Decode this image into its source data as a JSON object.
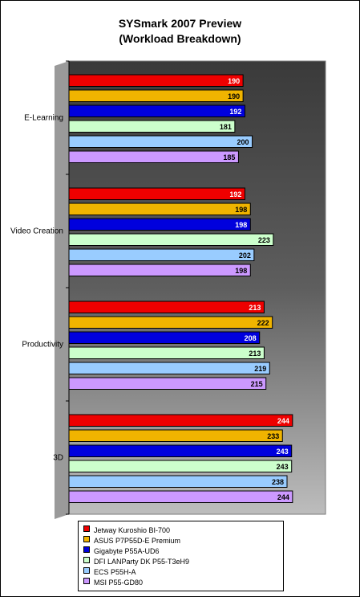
{
  "chart_data": {
    "type": "bar",
    "orientation": "horizontal",
    "title": [
      "SYSmark 2007 Preview",
      "(Workload Breakdown)"
    ],
    "categories": [
      "E-Learning",
      "Video Creation",
      "Productivity",
      "3D"
    ],
    "series": [
      {
        "name": "Jetway Kuroshio BI-700",
        "color": "#ee0000",
        "label_color": "#ffffff",
        "values": [
          190,
          192,
          213,
          244
        ]
      },
      {
        "name": "ASUS P7P55D-E Premium",
        "color": "#f0b400",
        "label_color": "#000000",
        "values": [
          190,
          198,
          222,
          233
        ]
      },
      {
        "name": "Gigabyte P55A-UD6",
        "color": "#0000dd",
        "label_color": "#ffffff",
        "values": [
          192,
          198,
          208,
          243
        ]
      },
      {
        "name": "DFI LANParty DK P55-T3eH9",
        "color": "#ccffcc",
        "label_color": "#000000",
        "values": [
          181,
          223,
          213,
          243
        ]
      },
      {
        "name": "ECS P55H-A",
        "color": "#99ccff",
        "label_color": "#000000",
        "values": [
          200,
          202,
          219,
          238
        ]
      },
      {
        "name": "MSI P55-GD80",
        "color": "#cc99ff",
        "label_color": "#000000",
        "values": [
          185,
          198,
          215,
          244
        ]
      }
    ],
    "xlim": [
      0,
      280
    ],
    "grid": false,
    "legend_position": "bottom",
    "plot_background": "gradient dark-to-light gray"
  }
}
